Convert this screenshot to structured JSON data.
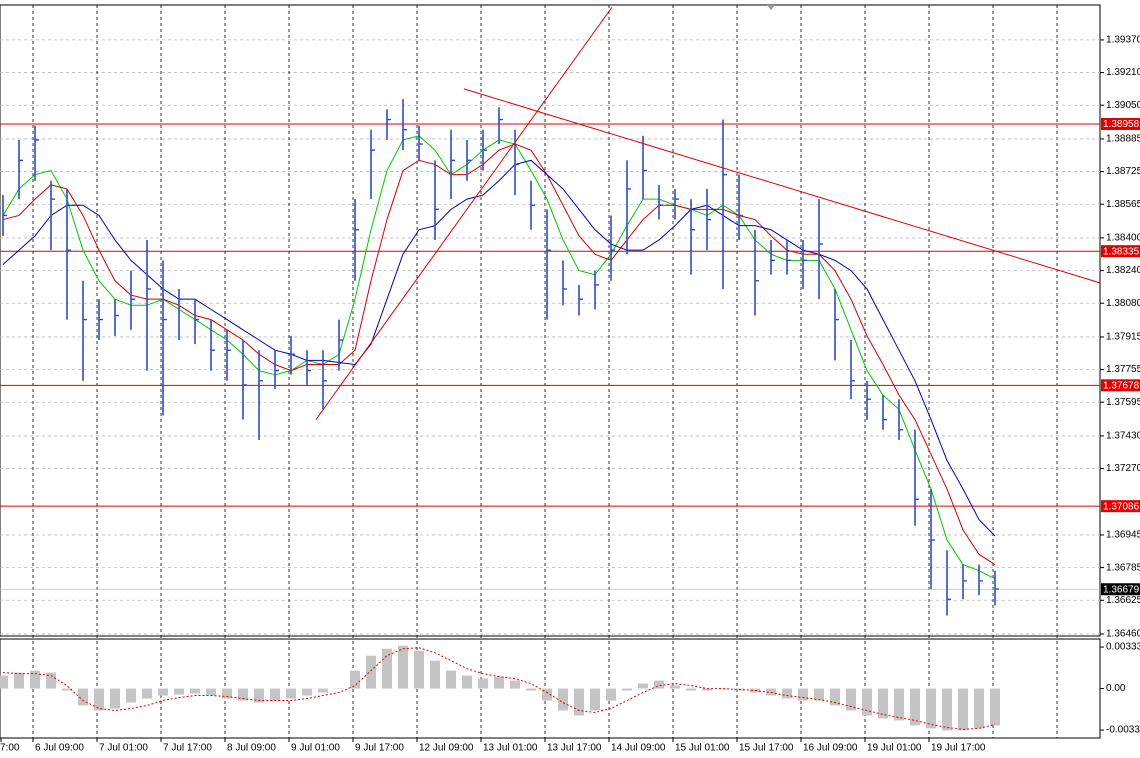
{
  "chart_data": [
    {
      "type": "ohlc",
      "categories": [
        "7:00",
        null,
        "6 Jul 09:00",
        null,
        null,
        null,
        "7 Jul 01:00",
        null,
        null,
        null,
        "7 Jul 17:00",
        null,
        null,
        null,
        "8 Jul 09:00",
        null,
        null,
        null,
        "9 Jul 01:00",
        null,
        null,
        null,
        "9 Jul 17:00",
        null,
        null,
        null,
        "12 Jul 09:00",
        null,
        null,
        null,
        "13 Jul 01:00",
        null,
        null,
        null,
        "13 Jul 17:00",
        null,
        null,
        null,
        "14 Jul 09:00",
        null,
        null,
        null,
        "15 Jul 01:00",
        null,
        null,
        null,
        "15 Jul 17:00",
        null,
        null,
        null,
        "16 Jul 09:00",
        null,
        null,
        null,
        "19 Jul 01:00",
        null,
        null,
        null,
        "19 Jul 17:00",
        null,
        null,
        null,
        null
      ],
      "high": [
        1.3861,
        1.3888,
        1.3895,
        1.3868,
        1.3864,
        1.3819,
        1.381,
        1.381,
        1.3824,
        1.3839,
        1.3829,
        1.3815,
        1.381,
        1.38,
        1.3795,
        1.379,
        1.3785,
        1.3785,
        1.3792,
        1.3785,
        1.3785,
        1.38,
        1.3859,
        1.3893,
        1.3903,
        1.3908,
        1.3895,
        1.3878,
        1.3893,
        1.3888,
        1.3893,
        1.3904,
        1.3893,
        1.3868,
        1.3854,
        1.3829,
        1.3817,
        1.3824,
        1.3851,
        1.3878,
        1.389,
        1.3866,
        1.3864,
        1.3859,
        1.3864,
        1.3898,
        1.3871,
        1.3844,
        1.3839,
        1.3839,
        1.3839,
        1.3859,
        1.3815,
        1.379,
        1.377,
        1.3763,
        1.3761,
        1.3746,
        1.3717,
        1.3687,
        1.368,
        1.368,
        1.3677
      ],
      "low": [
        1.3841,
        1.3859,
        1.3868,
        1.3834,
        1.38,
        1.377,
        1.379,
        1.3792,
        1.3795,
        1.3775,
        1.3753,
        1.379,
        1.3788,
        1.3775,
        1.377,
        1.3751,
        1.3741,
        1.3766,
        1.3773,
        1.3768,
        1.3756,
        1.3775,
        1.3819,
        1.3859,
        1.3888,
        1.3883,
        1.3878,
        1.3839,
        1.3859,
        1.3868,
        1.3873,
        1.3886,
        1.3861,
        1.3844,
        1.38,
        1.3807,
        1.3802,
        1.3805,
        1.3819,
        1.3832,
        1.3859,
        1.3849,
        1.3849,
        1.3822,
        1.3834,
        1.3815,
        1.3839,
        1.3802,
        1.3822,
        1.3822,
        1.3815,
        1.381,
        1.378,
        1.3761,
        1.3751,
        1.3746,
        1.3741,
        1.3699,
        1.3668,
        1.3655,
        1.3663,
        1.3665,
        1.366
      ],
      "close": [
        1.3851,
        1.3878,
        1.3888,
        1.3859,
        1.3834,
        1.38,
        1.38,
        1.3802,
        1.381,
        1.3815,
        1.38,
        1.381,
        1.38,
        1.3785,
        1.3785,
        1.3768,
        1.377,
        1.3775,
        1.3783,
        1.3775,
        1.377,
        1.379,
        1.3844,
        1.3883,
        1.3898,
        1.3893,
        1.3886,
        1.3854,
        1.3878,
        1.3878,
        1.3883,
        1.3898,
        1.3876,
        1.3856,
        1.3834,
        1.3815,
        1.381,
        1.3817,
        1.3834,
        1.3864,
        1.3873,
        1.3856,
        1.3859,
        1.3844,
        1.3849,
        1.3871,
        1.3851,
        1.3819,
        1.3829,
        1.3829,
        1.3829,
        1.3837,
        1.38,
        1.377,
        1.3761,
        1.3751,
        1.3746,
        1.3712,
        1.3692,
        1.3663,
        1.3672,
        1.3672,
        1.3668
      ],
      "color": "#2b4dc4",
      "series": [
        {
          "color": "#00c800",
          "values": [
            1.3851,
            1.3864,
            1.3871,
            1.3873,
            1.3859,
            1.3834,
            1.3819,
            1.381,
            1.3807,
            1.3807,
            1.381,
            1.3805,
            1.38,
            1.3795,
            1.379,
            1.3783,
            1.3775,
            1.3773,
            1.3775,
            1.378,
            1.3778,
            1.3783,
            1.381,
            1.3844,
            1.3873,
            1.3888,
            1.389,
            1.3883,
            1.3871,
            1.3876,
            1.3883,
            1.3888,
            1.3886,
            1.3873,
            1.3859,
            1.3839,
            1.3824,
            1.3822,
            1.3832,
            1.3846,
            1.3859,
            1.3859,
            1.3856,
            1.3854,
            1.3851,
            1.3856,
            1.3851,
            1.3839,
            1.3832,
            1.3829,
            1.3829,
            1.3829,
            1.3815,
            1.3795,
            1.3775,
            1.3763,
            1.3756,
            1.3736,
            1.3717,
            1.3692,
            1.368,
            1.3677,
            1.3673
          ]
        },
        {
          "color": "#d00000",
          "values": [
            1.3849,
            1.3851,
            1.3859,
            1.3866,
            1.3864,
            1.3851,
            1.3834,
            1.3819,
            1.3812,
            1.381,
            1.381,
            1.3807,
            1.3802,
            1.38,
            1.3795,
            1.379,
            1.3783,
            1.3778,
            1.3775,
            1.3778,
            1.3778,
            1.3778,
            1.3785,
            1.3819,
            1.3849,
            1.3873,
            1.3878,
            1.3876,
            1.3871,
            1.3871,
            1.3876,
            1.3883,
            1.3886,
            1.3883,
            1.3871,
            1.3856,
            1.3841,
            1.3832,
            1.3829,
            1.3839,
            1.3849,
            1.3856,
            1.3856,
            1.3854,
            1.3854,
            1.3854,
            1.3851,
            1.3849,
            1.3841,
            1.3834,
            1.3832,
            1.3832,
            1.3824,
            1.381,
            1.3792,
            1.3778,
            1.3763,
            1.3751,
            1.3734,
            1.3717,
            1.3697,
            1.3685,
            1.368
          ]
        },
        {
          "color": "#0000b0",
          "values": [
            1.3827,
            1.3834,
            1.3841,
            1.3851,
            1.3856,
            1.3856,
            1.3851,
            1.3839,
            1.3829,
            1.3822,
            1.3815,
            1.381,
            1.381,
            1.3805,
            1.38,
            1.3795,
            1.379,
            1.3785,
            1.3783,
            1.378,
            1.378,
            1.3779,
            1.3778,
            1.3788,
            1.381,
            1.3832,
            1.3844,
            1.3846,
            1.3854,
            1.3859,
            1.3861,
            1.3868,
            1.3876,
            1.3878,
            1.3871,
            1.3864,
            1.3854,
            1.3844,
            1.3837,
            1.3834,
            1.3834,
            1.3839,
            1.3846,
            1.3854,
            1.3856,
            1.3851,
            1.3846,
            1.3846,
            1.3844,
            1.3839,
            1.3834,
            1.3832,
            1.3829,
            1.3824,
            1.3815,
            1.38,
            1.3785,
            1.377,
            1.3751,
            1.3731,
            1.3717,
            1.3702,
            1.3694
          ]
        }
      ],
      "ylim": [
        1.3645,
        1.39541
      ],
      "yticks": [
        {
          "value": 1.3937,
          "label": "1.39370"
        },
        {
          "value": 1.3921,
          "label": "1.39210"
        },
        {
          "value": 1.3905,
          "label": "1.39050"
        },
        1.38885,
        1.38725,
        1.38565,
        {
          "value": 1.384,
          "label": "1.38400"
        },
        {
          "value": 1.3824,
          "label": "1.38240"
        },
        {
          "value": 1.3808,
          "label": "1.38080"
        },
        1.37915,
        1.37755,
        1.37595,
        {
          "value": 1.3743,
          "label": "1.37430"
        },
        {
          "value": 1.3727,
          "label": "1.37270"
        },
        1.36945,
        1.36785,
        1.36625,
        {
          "value": 1.3646,
          "label": "1.36460"
        }
      ],
      "grid": true,
      "levels": [
        1.38958,
        1.38335,
        1.37678,
        1.37086
      ],
      "level_color": "#e00000",
      "last_price": 1.36679,
      "trendlines": [
        {
          "x": [
            19.56,
            38.06
          ],
          "y": [
            1.3751,
            1.3953
          ]
        },
        {
          "x": [
            28.81,
            68.56
          ],
          "y": [
            1.3913,
            1.3818
          ]
        }
      ]
    },
    {
      "type": "macd",
      "values": [
        0.00104,
        0.00128,
        0.00144,
        0.00128,
        -0.00016,
        -0.00136,
        -0.00176,
        -0.0016,
        -0.00112,
        -0.0008,
        -0.00056,
        -0.00048,
        -0.0004,
        -0.00056,
        -0.0008,
        -0.00096,
        -0.00112,
        -0.00096,
        -0.0008,
        -0.00056,
        -0.00032,
        0,
        0.00144,
        0.00264,
        0.0032,
        0.00344,
        0.00304,
        0.00224,
        0.00144,
        0.00104,
        0.0008,
        0.00096,
        0.00064,
        -0.00016,
        -0.00096,
        -0.00176,
        -0.00216,
        -0.00176,
        -0.00096,
        -0.00016,
        0.0004,
        0.00064,
        0.00024,
        -0.00016,
        -0.00016,
        0,
        -0.00016,
        -0.00032,
        -0.00056,
        -0.0008,
        -0.00096,
        -0.00096,
        -0.00136,
        -0.00176,
        -0.00216,
        -0.0024,
        -0.00256,
        -0.00296,
        -0.0032,
        -0.00336,
        -0.00336,
        -0.0032,
        -0.00296
      ],
      "color": "#c4c4c4",
      "signal": [
        0.00128,
        0.0012,
        0.0012,
        0.00104,
        0.00024,
        -0.00096,
        -0.0016,
        -0.00176,
        -0.0016,
        -0.00136,
        -0.00096,
        -0.00072,
        -0.00056,
        -0.00056,
        -0.00064,
        -0.0008,
        -0.00096,
        -0.00096,
        -0.00096,
        -0.0008,
        -0.00056,
        -0.00032,
        0.00024,
        0.00144,
        0.00264,
        0.0032,
        0.00328,
        0.00288,
        0.00224,
        0.0016,
        0.0012,
        0.00096,
        0.0008,
        0.0004,
        -0.00032,
        -0.00112,
        -0.00176,
        -0.00192,
        -0.0016,
        -0.00096,
        -0.00032,
        0.00024,
        0.0004,
        0.00024,
        0,
        0,
        -8e-05,
        -0.00016,
        -0.00032,
        -0.00056,
        -0.00072,
        -0.00088,
        -0.00112,
        -0.00144,
        -0.00176,
        -0.00208,
        -0.00232,
        -0.00256,
        -0.00288,
        -0.00312,
        -0.00328,
        -0.0032,
        -0.00288
      ],
      "signal_color": "#e00000",
      "ylim": [
        -0.00397,
        0.0039
      ],
      "yticks": [
        {
          "value": 0.00333,
          "label": "0.00333"
        },
        {
          "value": 0,
          "label": "0.00"
        },
        {
          "value": -0.00333,
          "label": "-0.00333"
        }
      ]
    }
  ]
}
